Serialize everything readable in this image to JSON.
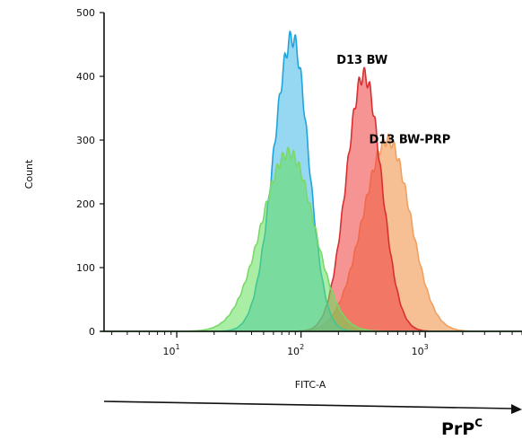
{
  "chart_data": {
    "type": "area",
    "title": "",
    "xlabel": "FITC-A",
    "ylabel": "Count",
    "x_scale": "log",
    "xlim": [
      2.6,
      6000
    ],
    "ylim": [
      0,
      500
    ],
    "y_ticks": [
      "0",
      "100",
      "200",
      "300",
      "400",
      "500"
    ],
    "x_decades": [
      {
        "base": "10",
        "exp": "1",
        "value": 10
      },
      {
        "base": "10",
        "exp": "2",
        "value": 100
      },
      {
        "base": "10",
        "exp": "3",
        "value": 1000
      }
    ],
    "grid": false,
    "legend": "none",
    "series": [
      {
        "fill": "#f08a3c",
        "stroke": "#f0a060",
        "peak_x": 500,
        "peak_y": 300,
        "width_left": 0.2,
        "width_right": 0.18
      },
      {
        "fill": "#ef3d3d",
        "stroke": "#d83030",
        "peak_x": 320,
        "peak_y": 402,
        "width_left": 0.14,
        "width_right": 0.14
      },
      {
        "fill": "#3fb6e8",
        "stroke": "#1fa4dc",
        "peak_x": 85,
        "peak_y": 460,
        "width_left": 0.15,
        "width_right": 0.13
      },
      {
        "fill": "#62e05a",
        "stroke": "#7ad86a",
        "peak_x": 80,
        "peak_y": 280,
        "width_left": 0.22,
        "width_right": 0.2
      }
    ],
    "annotations": [
      {
        "text": "D13 BW",
        "x": 310,
        "y": 420
      },
      {
        "text": "D13 BW-PRP",
        "x": 750,
        "y": 295
      }
    ]
  },
  "arrow_label": {
    "base": "PrP",
    "sup": "C"
  }
}
